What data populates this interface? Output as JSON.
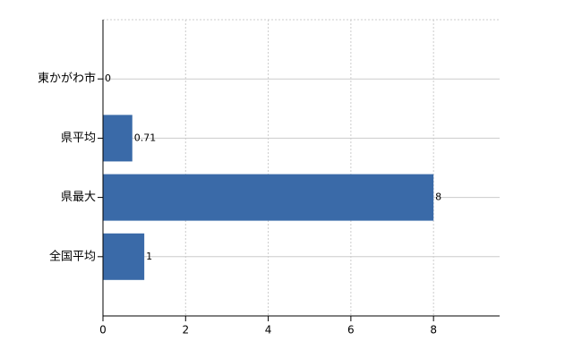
{
  "chart_data": {
    "type": "bar",
    "orientation": "horizontal",
    "categories": [
      "東かがわ市",
      "県平均",
      "県最大",
      "全国平均"
    ],
    "values": [
      0,
      0.71,
      8,
      1
    ],
    "color": "#3a6aa8",
    "xlim": [
      0,
      9.6
    ],
    "xticks": [
      0,
      2,
      4,
      6,
      8
    ],
    "grid": true
  }
}
